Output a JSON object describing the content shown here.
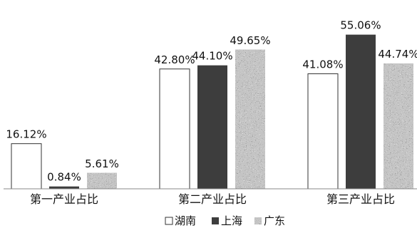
{
  "chart_data": {
    "type": "bar",
    "categories": [
      "第一产业占比",
      "第二产业占比",
      "第三产业占比"
    ],
    "series": [
      {
        "name": "湖南",
        "values": [
          16.12,
          42.8,
          41.08
        ],
        "labels": [
          "16.12%",
          "42.80%",
          "41.08%"
        ],
        "style": "white-outline"
      },
      {
        "name": "上海",
        "values": [
          0.84,
          44.1,
          55.06
        ],
        "labels": [
          "0.84%",
          "44.10%",
          "55.06%"
        ],
        "style": "solid",
        "color": "#3d3d3d"
      },
      {
        "name": "广东",
        "values": [
          5.61,
          49.65,
          44.74
        ],
        "labels": [
          "5.61%",
          "49.65%",
          "44.74%"
        ],
        "style": "speckled"
      }
    ],
    "ylim": [
      0,
      60
    ],
    "grid": false,
    "legend_position": "bottom"
  }
}
